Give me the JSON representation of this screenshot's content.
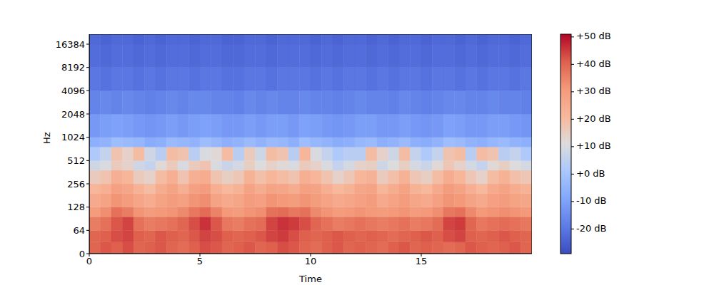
{
  "chart_data": {
    "type": "heatmap",
    "x_label": "Time",
    "y_label": "Hz",
    "log": "y",
    "xlim": [
      0,
      20
    ],
    "xticks": [
      0,
      5,
      10,
      15
    ],
    "ylim": [
      0,
      22050
    ],
    "yticks": [
      0,
      64,
      128,
      256,
      512,
      1024,
      2048,
      4096,
      8192,
      16384
    ],
    "time_bins": [
      0,
      0.5,
      1,
      1.5,
      2,
      2.5,
      3,
      3.5,
      4,
      4.5,
      5,
      5.5,
      6,
      6.5,
      7,
      7.5,
      8,
      8.5,
      9,
      9.5,
      10,
      10.5,
      11,
      11.5,
      12,
      12.5,
      13,
      13.5,
      14,
      14.5,
      15,
      15.5,
      16,
      16.5,
      17,
      17.5,
      18,
      18.5,
      19,
      19.5,
      20
    ],
    "freq_bins": [
      0,
      32,
      64,
      96,
      128,
      192,
      256,
      384,
      512,
      768,
      1024,
      2048,
      4096,
      8192,
      16384,
      22050
    ],
    "cells": [
      [
        40,
        42,
        41,
        43,
        40,
        41,
        42,
        40,
        39,
        41,
        43,
        42,
        40,
        41,
        42,
        40,
        41,
        43,
        42,
        40,
        39,
        41,
        42,
        40,
        41,
        40,
        39,
        41,
        42,
        40,
        41,
        40,
        39,
        40,
        42,
        41,
        40,
        41,
        42,
        40
      ],
      [
        40,
        41,
        43,
        44,
        41,
        40,
        42,
        41,
        40,
        42,
        44,
        43,
        41,
        40,
        41,
        42,
        44,
        45,
        43,
        41,
        40,
        41,
        42,
        41,
        40,
        41,
        40,
        39,
        40,
        41,
        42,
        41,
        43,
        44,
        41,
        40,
        41,
        42,
        41,
        40
      ],
      [
        36,
        38,
        42,
        44,
        38,
        36,
        37,
        38,
        40,
        43,
        46,
        42,
        37,
        36,
        38,
        39,
        44,
        46,
        45,
        43,
        40,
        38,
        36,
        37,
        38,
        37,
        36,
        37,
        38,
        36,
        37,
        39,
        44,
        45,
        40,
        37,
        38,
        39,
        38,
        37
      ],
      [
        30,
        33,
        38,
        36,
        32,
        30,
        31,
        32,
        34,
        37,
        39,
        35,
        31,
        30,
        32,
        33,
        38,
        39,
        37,
        38,
        34,
        32,
        30,
        31,
        32,
        31,
        30,
        31,
        32,
        30,
        31,
        33,
        37,
        38,
        34,
        31,
        32,
        33,
        32,
        31
      ],
      [
        26,
        28,
        32,
        30,
        27,
        25,
        28,
        30,
        29,
        32,
        33,
        28,
        26,
        27,
        30,
        29,
        32,
        31,
        30,
        32,
        30,
        28,
        26,
        27,
        29,
        30,
        26,
        28,
        30,
        27,
        26,
        29,
        32,
        31,
        28,
        26,
        29,
        30,
        28,
        27
      ],
      [
        22,
        24,
        29,
        27,
        23,
        20,
        25,
        28,
        24,
        29,
        30,
        24,
        21,
        23,
        28,
        25,
        28,
        27,
        25,
        29,
        28,
        24,
        21,
        23,
        27,
        28,
        22,
        25,
        28,
        23,
        21,
        26,
        30,
        28,
        24,
        21,
        26,
        28,
        25,
        23
      ],
      [
        16,
        18,
        24,
        22,
        16,
        14,
        20,
        24,
        18,
        24,
        25,
        18,
        15,
        17,
        23,
        19,
        22,
        20,
        18,
        24,
        22,
        18,
        14,
        17,
        22,
        23,
        16,
        19,
        23,
        17,
        15,
        20,
        25,
        22,
        17,
        14,
        20,
        23,
        19,
        17
      ],
      [
        8,
        10,
        16,
        14,
        8,
        6,
        12,
        16,
        10,
        16,
        18,
        10,
        7,
        9,
        15,
        11,
        14,
        12,
        10,
        16,
        14,
        10,
        6,
        9,
        14,
        15,
        8,
        11,
        15,
        9,
        7,
        12,
        17,
        14,
        9,
        6,
        12,
        15,
        11,
        9
      ],
      [
        2,
        6,
        18,
        14,
        20,
        8,
        4,
        20,
        18,
        4,
        10,
        12,
        20,
        4,
        16,
        8,
        20,
        18,
        4,
        22,
        10,
        6,
        2,
        4,
        4,
        20,
        14,
        8,
        20,
        6,
        2,
        6,
        18,
        20,
        4,
        20,
        18,
        4,
        6,
        2
      ],
      [
        -6,
        -5,
        -2,
        -3,
        -4,
        -7,
        -6,
        -3,
        -4,
        -5,
        -2,
        -4,
        -6,
        -5,
        -3,
        -5,
        -3,
        -4,
        -6,
        -2,
        -4,
        -5,
        -7,
        -6,
        -4,
        -3,
        -6,
        -5,
        -3,
        -6,
        -7,
        -5,
        -2,
        -3,
        -5,
        -6,
        -4,
        -3,
        -5,
        -6
      ],
      [
        -12,
        -11,
        -10,
        -11,
        -12,
        -13,
        -12,
        -11,
        -12,
        -11,
        -10,
        -11,
        -12,
        -12,
        -11,
        -12,
        -11,
        -11,
        -12,
        -10,
        -11,
        -12,
        -13,
        -12,
        -11,
        -11,
        -12,
        -12,
        -11,
        -12,
        -13,
        -12,
        -10,
        -11,
        -12,
        -12,
        -11,
        -11,
        -12,
        -13
      ],
      [
        -17,
        -16,
        -17,
        -16,
        -17,
        -18,
        -17,
        -16,
        -17,
        -16,
        -16,
        -17,
        -17,
        -18,
        -16,
        -17,
        -16,
        -17,
        -17,
        -16,
        -17,
        -17,
        -18,
        -17,
        -16,
        -17,
        -17,
        -18,
        -16,
        -17,
        -18,
        -17,
        -16,
        -16,
        -17,
        -17,
        -16,
        -17,
        -17,
        -18
      ],
      [
        -20,
        -21,
        -20,
        -20,
        -21,
        -20,
        -21,
        -20,
        -20,
        -21,
        -20,
        -20,
        -21,
        -21,
        -20,
        -20,
        -21,
        -20,
        -20,
        -20,
        -21,
        -20,
        -21,
        -20,
        -20,
        -21,
        -20,
        -21,
        -20,
        -20,
        -21,
        -20,
        -20,
        -21,
        -20,
        -21,
        -20,
        -20,
        -21,
        -20
      ],
      [
        -22,
        -23,
        -22,
        -22,
        -23,
        -22,
        -23,
        -22,
        -22,
        -23,
        -22,
        -22,
        -23,
        -23,
        -22,
        -22,
        -23,
        -22,
        -22,
        -22,
        -23,
        -22,
        -23,
        -22,
        -22,
        -23,
        -22,
        -23,
        -22,
        -22,
        -23,
        -22,
        -22,
        -23,
        -22,
        -23,
        -22,
        -22,
        -23,
        -22
      ],
      [
        -23,
        -24,
        -23,
        -23,
        -24,
        -23,
        -24,
        -23,
        -23,
        -24,
        -23,
        -23,
        -24,
        -24,
        -23,
        -23,
        -24,
        -23,
        -23,
        -23,
        -24,
        -23,
        -24,
        -23,
        -23,
        -24,
        -23,
        -24,
        -23,
        -23,
        -24,
        -23,
        -23,
        -24,
        -23,
        -24,
        -23,
        -23,
        -24,
        -23
      ]
    ],
    "colorbar": {
      "range": [
        -29,
        51
      ],
      "ticks": [
        {
          "value": -20,
          "label": "-20 dB"
        },
        {
          "value": -10,
          "label": "-10 dB"
        },
        {
          "value": 0,
          "label": "+0 dB"
        },
        {
          "value": 10,
          "label": "+10 dB"
        },
        {
          "value": 20,
          "label": "+20 dB"
        },
        {
          "value": 30,
          "label": "+30 dB"
        },
        {
          "value": 40,
          "label": "+40 dB"
        },
        {
          "value": 50,
          "label": "+50 dB"
        }
      ]
    }
  }
}
